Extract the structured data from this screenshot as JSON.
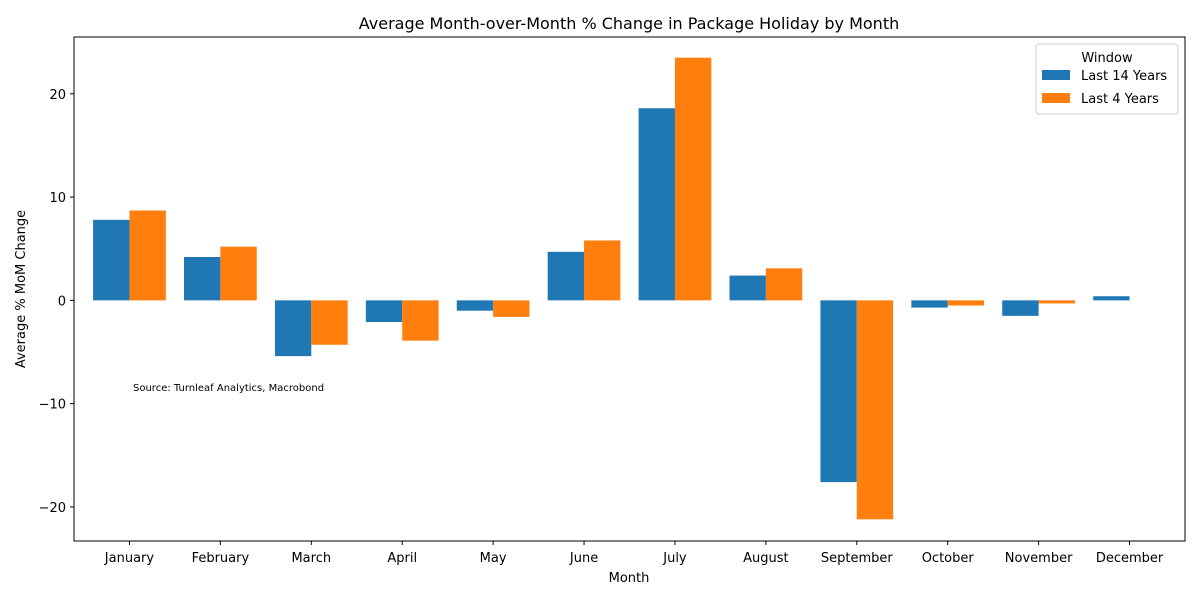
{
  "chart_data": {
    "type": "bar",
    "title": "Average Month-over-Month % Change in Package Holiday by Month",
    "xlabel": "Month",
    "ylabel": "Average % MoM Change",
    "ylim": [
      -23.3,
      25.5
    ],
    "yticks": [
      -20,
      -10,
      0,
      10,
      20
    ],
    "ytick_labels": [
      "−20",
      "−10",
      "0",
      "10",
      "20"
    ],
    "grid": false,
    "legend": {
      "title": "Window",
      "placement": "top-right"
    },
    "categories": [
      "January",
      "February",
      "March",
      "April",
      "May",
      "June",
      "July",
      "August",
      "September",
      "October",
      "November",
      "December"
    ],
    "series": [
      {
        "name": "Last 14 Years",
        "color": "#1f77b4",
        "values": [
          7.8,
          4.2,
          -5.4,
          -2.1,
          -1.0,
          4.7,
          18.6,
          2.4,
          -17.6,
          -0.7,
          -1.5,
          0.4
        ]
      },
      {
        "name": "Last 4 Years",
        "color": "#ff7f0e",
        "values": [
          8.7,
          5.2,
          -4.3,
          -3.9,
          -1.6,
          5.8,
          23.5,
          3.1,
          -21.2,
          -0.5,
          -0.3,
          null
        ]
      }
    ],
    "annotation": "Source: Turnleaf Analytics, Macrobond"
  }
}
